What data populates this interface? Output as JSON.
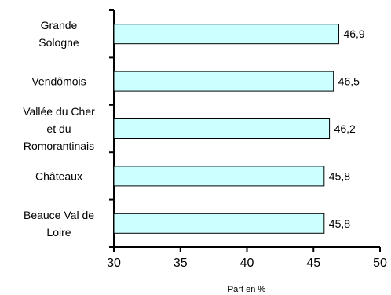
{
  "chart_data": {
    "type": "bar",
    "orientation": "horizontal",
    "categories": [
      [
        "Grande",
        "Sologne"
      ],
      [
        "Vendômois"
      ],
      [
        "Vallée du Cher",
        "et du",
        "Romorantinais"
      ],
      [
        "Châteaux"
      ],
      [
        "Beauce Val de",
        "Loire"
      ]
    ],
    "values": [
      46.9,
      46.5,
      46.2,
      45.8,
      45.8
    ],
    "value_labels": [
      "46,9",
      "46,5",
      "46,2",
      "45,8",
      "45,8"
    ],
    "xlabel": "Part en %",
    "xlim": [
      30,
      50
    ],
    "xticks": [
      30,
      35,
      40,
      45,
      50
    ],
    "grid": false,
    "legend": "none",
    "bar_color": "#ccffff",
    "bar_edge_color": "#000000"
  }
}
